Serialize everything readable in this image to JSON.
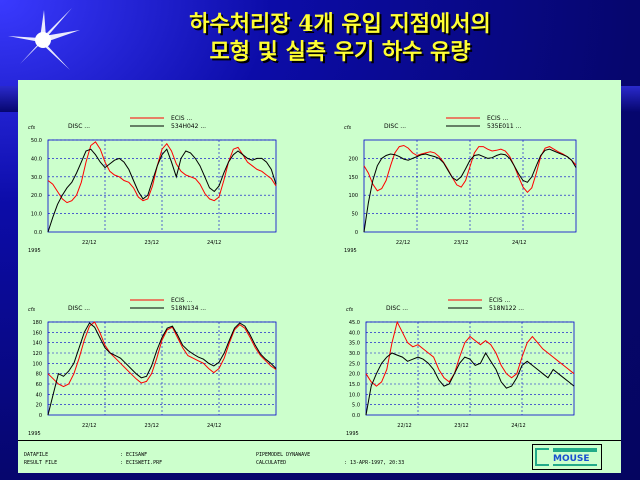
{
  "title": {
    "line1": "하수처리장 4개 유입 지점에서의",
    "line2": "모형 및 실측 우기 하수 유량"
  },
  "colors": {
    "background": "#0a0a8c",
    "title": "#ffff33",
    "panel": "#ccffcc",
    "ecis": "#ff0000",
    "disc": "#000000",
    "grid": "#0000cc"
  },
  "chart_data": [
    {
      "type": "line",
      "unit": "cfs",
      "year": "1995",
      "x_labels": [
        "22/12",
        "23/12",
        "24/12"
      ],
      "ylim": [
        0,
        50
      ],
      "yticks": [
        "0.0",
        "10.0",
        "20.0",
        "30.0",
        "40.0",
        "50.0"
      ],
      "ytick_values": [
        0,
        10,
        20,
        30,
        40,
        50
      ],
      "legend": [
        "ECIS ...",
        "534H042 ..."
      ],
      "legend_left": "DISC ...",
      "series": [
        {
          "name": "ECIS ...",
          "color": "#ff0000",
          "values": [
            28,
            26,
            22,
            18,
            16,
            17,
            20,
            27,
            38,
            47,
            49,
            45,
            38,
            33,
            31,
            30,
            28,
            27,
            24,
            19,
            17,
            18,
            25,
            36,
            45,
            48,
            44,
            37,
            33,
            31,
            30,
            29,
            26,
            21,
            18,
            17,
            19,
            28,
            38,
            45,
            46,
            42,
            38,
            36,
            34,
            33,
            31,
            29,
            25
          ]
        },
        {
          "name": "534H042 ...",
          "color": "#000000",
          "values": [
            0,
            8,
            15,
            20,
            24,
            27,
            32,
            38,
            44,
            45,
            42,
            38,
            35,
            37,
            39,
            40,
            38,
            34,
            28,
            22,
            18,
            20,
            28,
            36,
            42,
            45,
            38,
            30,
            40,
            44,
            43,
            40,
            36,
            30,
            24,
            22,
            25,
            32,
            38,
            42,
            44,
            42,
            40,
            39,
            40,
            40,
            38,
            34,
            26
          ]
        }
      ]
    },
    {
      "type": "line",
      "unit": "cfs",
      "year": "1995",
      "x_labels": [
        "22/12",
        "23/12",
        "24/12"
      ],
      "ylim": [
        0,
        250
      ],
      "yticks": [
        "0",
        "50",
        "100",
        "150",
        "200"
      ],
      "ytick_values": [
        0,
        50,
        100,
        150,
        200
      ],
      "legend": [
        "ECIS ...",
        "535E011 ..."
      ],
      "legend_left": "DISC ...",
      "series": [
        {
          "name": "ECIS ...",
          "color": "#ff0000",
          "values": [
            180,
            160,
            130,
            112,
            118,
            140,
            180,
            215,
            232,
            235,
            228,
            215,
            208,
            212,
            215,
            218,
            215,
            205,
            190,
            170,
            148,
            128,
            122,
            140,
            178,
            215,
            232,
            232,
            225,
            220,
            222,
            225,
            220,
            205,
            180,
            150,
            122,
            108,
            120,
            160,
            205,
            228,
            232,
            225,
            218,
            212,
            205,
            195,
            182
          ]
        },
        {
          "name": "535E011 ...",
          "color": "#000000",
          "values": [
            0,
            80,
            140,
            180,
            200,
            208,
            212,
            210,
            205,
            198,
            195,
            200,
            205,
            210,
            212,
            208,
            205,
            200,
            188,
            168,
            148,
            140,
            150,
            172,
            195,
            208,
            210,
            205,
            200,
            202,
            208,
            212,
            210,
            200,
            180,
            158,
            140,
            135,
            150,
            180,
            208,
            222,
            225,
            220,
            215,
            210,
            205,
            195,
            175
          ]
        }
      ]
    },
    {
      "type": "line",
      "unit": "cfs",
      "year": "1995",
      "x_labels": [
        "22/12",
        "23/12",
        "24/12"
      ],
      "ylim": [
        0,
        180
      ],
      "yticks": [
        "0",
        "20",
        "40",
        "60",
        "80",
        "100",
        "120",
        "140",
        "160",
        "180"
      ],
      "ytick_values": [
        0,
        20,
        40,
        60,
        80,
        100,
        120,
        140,
        160,
        180
      ],
      "legend": [
        "ECIS ...",
        "518N134 ..."
      ],
      "legend_left": "DISC ...",
      "series": [
        {
          "name": "ECIS ...",
          "color": "#ff0000",
          "values": [
            80,
            70,
            60,
            55,
            60,
            80,
            110,
            145,
            172,
            180,
            160,
            135,
            120,
            110,
            100,
            90,
            80,
            70,
            62,
            65,
            80,
            110,
            145,
            165,
            170,
            150,
            130,
            115,
            110,
            105,
            100,
            90,
            82,
            90,
            110,
            140,
            165,
            175,
            168,
            150,
            130,
            115,
            105,
            95,
            88
          ]
        },
        {
          "name": "518N134 ...",
          "color": "#000000",
          "values": [
            0,
            40,
            80,
            75,
            85,
            100,
            130,
            160,
            178,
            170,
            150,
            130,
            120,
            115,
            110,
            100,
            90,
            80,
            72,
            75,
            95,
            125,
            150,
            168,
            172,
            155,
            135,
            125,
            118,
            112,
            108,
            100,
            95,
            102,
            120,
            145,
            168,
            178,
            172,
            155,
            135,
            118,
            108,
            100,
            90
          ]
        }
      ]
    },
    {
      "type": "line",
      "unit": "cfs",
      "year": "1995",
      "x_labels": [
        "22/12",
        "23/12",
        "24/12"
      ],
      "ylim": [
        0,
        45
      ],
      "yticks": [
        "0.0",
        "5.0",
        "10.0",
        "15.0",
        "20.0",
        "25.0",
        "30.0",
        "35.0",
        "40.0",
        "45.0"
      ],
      "ytick_values": [
        0,
        5,
        10,
        15,
        20,
        25,
        30,
        35,
        40,
        45
      ],
      "legend": [
        "ECIS ...",
        "518N122 ..."
      ],
      "legend_left": "DISC ...",
      "series": [
        {
          "name": "ECIS ...",
          "color": "#ff0000",
          "values": [
            20,
            16,
            14,
            16,
            22,
            35,
            45,
            40,
            35,
            33,
            34,
            32,
            30,
            28,
            22,
            18,
            16,
            20,
            28,
            35,
            38,
            36,
            34,
            36,
            34,
            30,
            24,
            20,
            18,
            20,
            28,
            35,
            38,
            35,
            32,
            30,
            28,
            26,
            24,
            22,
            20
          ]
        },
        {
          "name": "518N122 ...",
          "color": "#000000",
          "values": [
            0,
            14,
            20,
            25,
            28,
            30,
            29,
            28,
            26,
            27,
            28,
            27,
            25,
            22,
            17,
            14,
            15,
            20,
            25,
            28,
            27,
            24,
            25,
            30,
            26,
            22,
            16,
            13,
            14,
            18,
            24,
            26,
            24,
            22,
            20,
            18,
            22,
            20,
            18,
            16,
            14
          ]
        }
      ]
    }
  ],
  "footer": {
    "data_file_label": "DATAFILE",
    "data_file_value": ": ECISAWF",
    "result_file_label": "RESULT FILE",
    "result_file_value": ": ECISWETI.PRF",
    "model_label": "PIPEMODEL DYNAWAVE",
    "calc_label": "CALCULATED",
    "calc_value": ": 13-APR-1997, 20:33",
    "logo_text": "MOUSE"
  }
}
